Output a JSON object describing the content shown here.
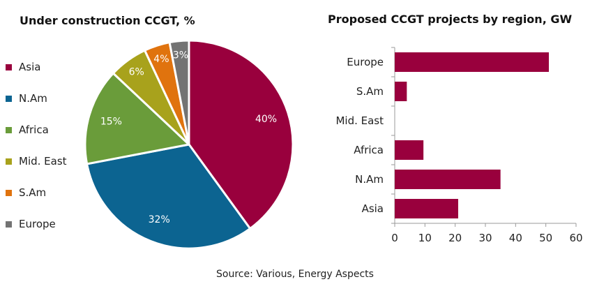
{
  "source_note": "Source:  Various, Energy Aspects",
  "chart_data": [
    {
      "type": "pie",
      "title": "Under construction CCGT, %",
      "legend_position": "left",
      "slices": [
        {
          "name": "Asia",
          "value": 40,
          "label": "40%",
          "color": "#99003d"
        },
        {
          "name": "N.Am",
          "value": 32,
          "label": "32%",
          "color": "#0c6491"
        },
        {
          "name": "Africa",
          "value": 15,
          "label": "15%",
          "color": "#6a9c3a"
        },
        {
          "name": "Mid. East",
          "value": 6,
          "label": "6%",
          "color": "#a8a21c"
        },
        {
          "name": "S.Am",
          "value": 4,
          "label": "4%",
          "color": "#e0730e"
        },
        {
          "name": "Europe",
          "value": 3,
          "label": "3%",
          "color": "#737373"
        }
      ]
    },
    {
      "type": "bar",
      "orientation": "horizontal",
      "title": "Proposed CCGT projects by region, GW",
      "categories": [
        "Europe",
        "S.Am",
        "Mid. East",
        "Africa",
        "N.Am",
        "Asia"
      ],
      "values": [
        51,
        4,
        0,
        9.5,
        35,
        21
      ],
      "xlim": [
        0,
        60
      ],
      "xticks": [
        0,
        10,
        20,
        30,
        40,
        50,
        60
      ],
      "grid": false,
      "color": "#99003d"
    }
  ]
}
